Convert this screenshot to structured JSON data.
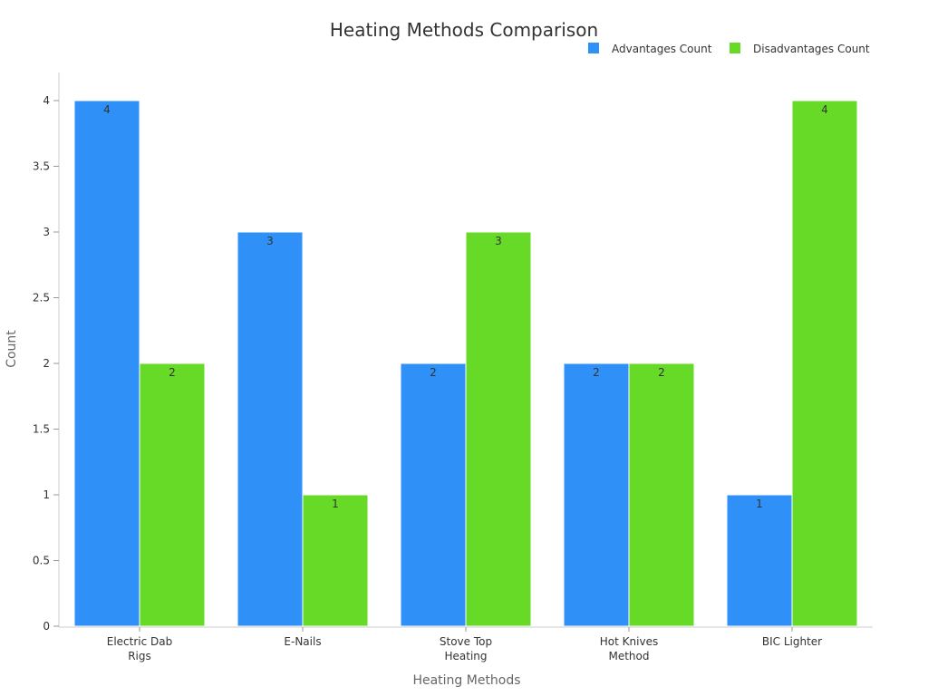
{
  "chart_data": {
    "type": "bar",
    "title": "Heating Methods Comparison",
    "xlabel": "Heating Methods",
    "ylabel": "Count",
    "categories": [
      [
        "Electric Dab",
        "Rigs"
      ],
      [
        "E-Nails"
      ],
      [
        "Stove Top",
        "Heating"
      ],
      [
        "Hot Knives",
        "Method"
      ],
      [
        "BIC Lighter"
      ]
    ],
    "series": [
      {
        "name": "Advantages Count",
        "color": "#2f91f8",
        "values": [
          4,
          3,
          2,
          2,
          1
        ]
      },
      {
        "name": "Disadvantages Count",
        "color": "#66da27",
        "values": [
          2,
          1,
          3,
          2,
          4
        ]
      }
    ],
    "ylim": [
      0,
      4.2
    ],
    "yticks": [
      0,
      0.5,
      1,
      1.5,
      2,
      2.5,
      3,
      3.5,
      4
    ],
    "ytick_labels": [
      "0",
      "0.5",
      "1",
      "1.5",
      "2",
      "2.5",
      "3",
      "3.5",
      "4"
    ],
    "grid": false,
    "legend": "top-right"
  }
}
